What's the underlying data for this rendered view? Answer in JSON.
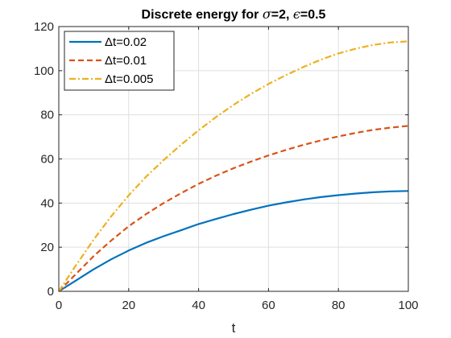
{
  "chart_data": {
    "type": "line",
    "title_prefix": "Discrete energy for ",
    "title_sigma_symbol": "σ",
    "title_sigma_value": "=2, ",
    "title_eps_symbol": "ϵ",
    "title_eps_value": "=0.5",
    "xlabel": "t",
    "ylabel": "",
    "xlim": [
      0,
      100
    ],
    "ylim": [
      0,
      120
    ],
    "xticks": [
      0,
      20,
      40,
      60,
      80,
      100
    ],
    "yticks": [
      0,
      20,
      40,
      60,
      80,
      100,
      120
    ],
    "grid": true,
    "legend_position": "top-left",
    "x": [
      0,
      5,
      10,
      15,
      20,
      25,
      30,
      35,
      40,
      45,
      50,
      55,
      60,
      65,
      70,
      75,
      80,
      85,
      90,
      95,
      100
    ],
    "series": [
      {
        "name": "Δt=0.02",
        "color": "#0072BD",
        "style": "solid",
        "values": [
          0,
          5,
          10,
          14.5,
          18.5,
          22,
          25,
          27.7,
          30.5,
          32.8,
          35,
          37,
          38.8,
          40.3,
          41.6,
          42.7,
          43.6,
          44.3,
          44.9,
          45.3,
          45.5
        ]
      },
      {
        "name": "Δt=0.01",
        "color": "#D95319",
        "style": "dashed",
        "values": [
          0,
          8,
          16,
          23,
          29.5,
          35,
          40,
          44.5,
          48.7,
          52.4,
          55.8,
          58.8,
          61.6,
          64.1,
          66.4,
          68.4,
          70.2,
          71.8,
          73.2,
          74.2,
          75
        ]
      },
      {
        "name": "Δt=0.005",
        "color": "#EDB120",
        "style": "dashdot",
        "values": [
          0,
          12,
          23.5,
          34,
          43.5,
          52,
          59.5,
          66.5,
          73,
          79,
          84.5,
          89.5,
          94,
          98,
          101.7,
          105,
          107.8,
          110,
          111.7,
          112.8,
          113.3
        ]
      }
    ]
  }
}
